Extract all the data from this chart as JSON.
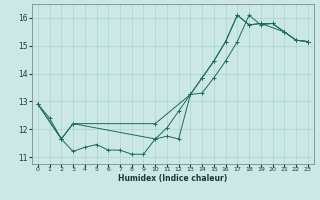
{
  "xlabel": "Humidex (Indice chaleur)",
  "bg_color": "#cce8e6",
  "grid_color": "#aad4d0",
  "line_color": "#1a6b5e",
  "xlim": [
    -0.5,
    23.5
  ],
  "ylim": [
    10.75,
    16.5
  ],
  "yticks": [
    11,
    12,
    13,
    14,
    15,
    16
  ],
  "xticks": [
    0,
    1,
    2,
    3,
    4,
    5,
    6,
    7,
    8,
    9,
    10,
    11,
    12,
    13,
    14,
    15,
    16,
    17,
    18,
    19,
    20,
    21,
    22,
    23
  ],
  "curve1_x": [
    0,
    1,
    2,
    3,
    4,
    5,
    6,
    7,
    8,
    9,
    10,
    11,
    12,
    13,
    14,
    15,
    16,
    17,
    18,
    19,
    20,
    21,
    22,
    23
  ],
  "curve1_y": [
    12.9,
    12.4,
    11.65,
    11.2,
    11.35,
    11.45,
    11.25,
    11.25,
    11.1,
    11.1,
    11.65,
    12.05,
    12.65,
    13.25,
    13.3,
    13.85,
    14.45,
    15.15,
    16.1,
    15.75,
    15.8,
    15.5,
    15.2,
    15.15
  ],
  "curve2_x": [
    0,
    2,
    3,
    10,
    13,
    14,
    15,
    16,
    17,
    18,
    19,
    21,
    22,
    23
  ],
  "curve2_y": [
    12.9,
    11.65,
    12.2,
    12.2,
    13.25,
    13.85,
    14.45,
    15.15,
    16.1,
    15.75,
    15.8,
    15.5,
    15.2,
    15.15
  ],
  "curve3_x": [
    0,
    2,
    3,
    10,
    11,
    12,
    13,
    14,
    15,
    16,
    17,
    18,
    19,
    20,
    21,
    22,
    23
  ],
  "curve3_y": [
    12.9,
    11.65,
    12.2,
    11.65,
    11.75,
    11.65,
    13.25,
    13.85,
    14.45,
    15.15,
    16.1,
    15.75,
    15.8,
    15.8,
    15.5,
    15.2,
    15.15
  ]
}
